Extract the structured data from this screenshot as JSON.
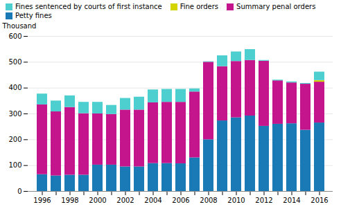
{
  "chart_data": {
    "type": "bar",
    "stacked": true,
    "categories": [
      "1996",
      null,
      "1998",
      null,
      "2000",
      null,
      "2002",
      null,
      "2004",
      null,
      "2006",
      null,
      "2008",
      null,
      "2010",
      null,
      "2012",
      null,
      "2014",
      null,
      "2016"
    ],
    "series": [
      {
        "name": "Petty fines",
        "color": "#1a7ab5",
        "values": [
          65,
          60,
          63,
          63,
          102,
          102,
          95,
          95,
          108,
          108,
          107,
          130,
          200,
          273,
          285,
          292,
          252,
          260,
          262,
          237,
          265
        ]
      },
      {
        "name": "Summary penal orders",
        "color": "#c4158c",
        "values": [
          270,
          248,
          262,
          238,
          198,
          196,
          220,
          220,
          235,
          237,
          238,
          255,
          300,
          210,
          218,
          215,
          252,
          168,
          158,
          178,
          158
        ]
      },
      {
        "name": "Fine orders",
        "color": "#d4d400",
        "values": [
          0,
          0,
          0,
          0,
          0,
          0,
          0,
          0,
          0,
          0,
          0,
          0,
          0,
          0,
          0,
          0,
          0,
          0,
          0,
          0,
          6
        ]
      },
      {
        "name": "Fines sentenced by courts of first instance",
        "color": "#4dcfcf",
        "values": [
          42,
          42,
          45,
          44,
          45,
          35,
          45,
          50,
          50,
          50,
          50,
          12,
          2,
          42,
          37,
          42,
          3,
          3,
          4,
          3,
          33
        ]
      }
    ],
    "ylabel": "Thousand",
    "ylim": [
      0,
      600
    ],
    "yticks": [
      0,
      100,
      200,
      300,
      400,
      500,
      600
    ],
    "grid": true,
    "legend": "upper left"
  }
}
